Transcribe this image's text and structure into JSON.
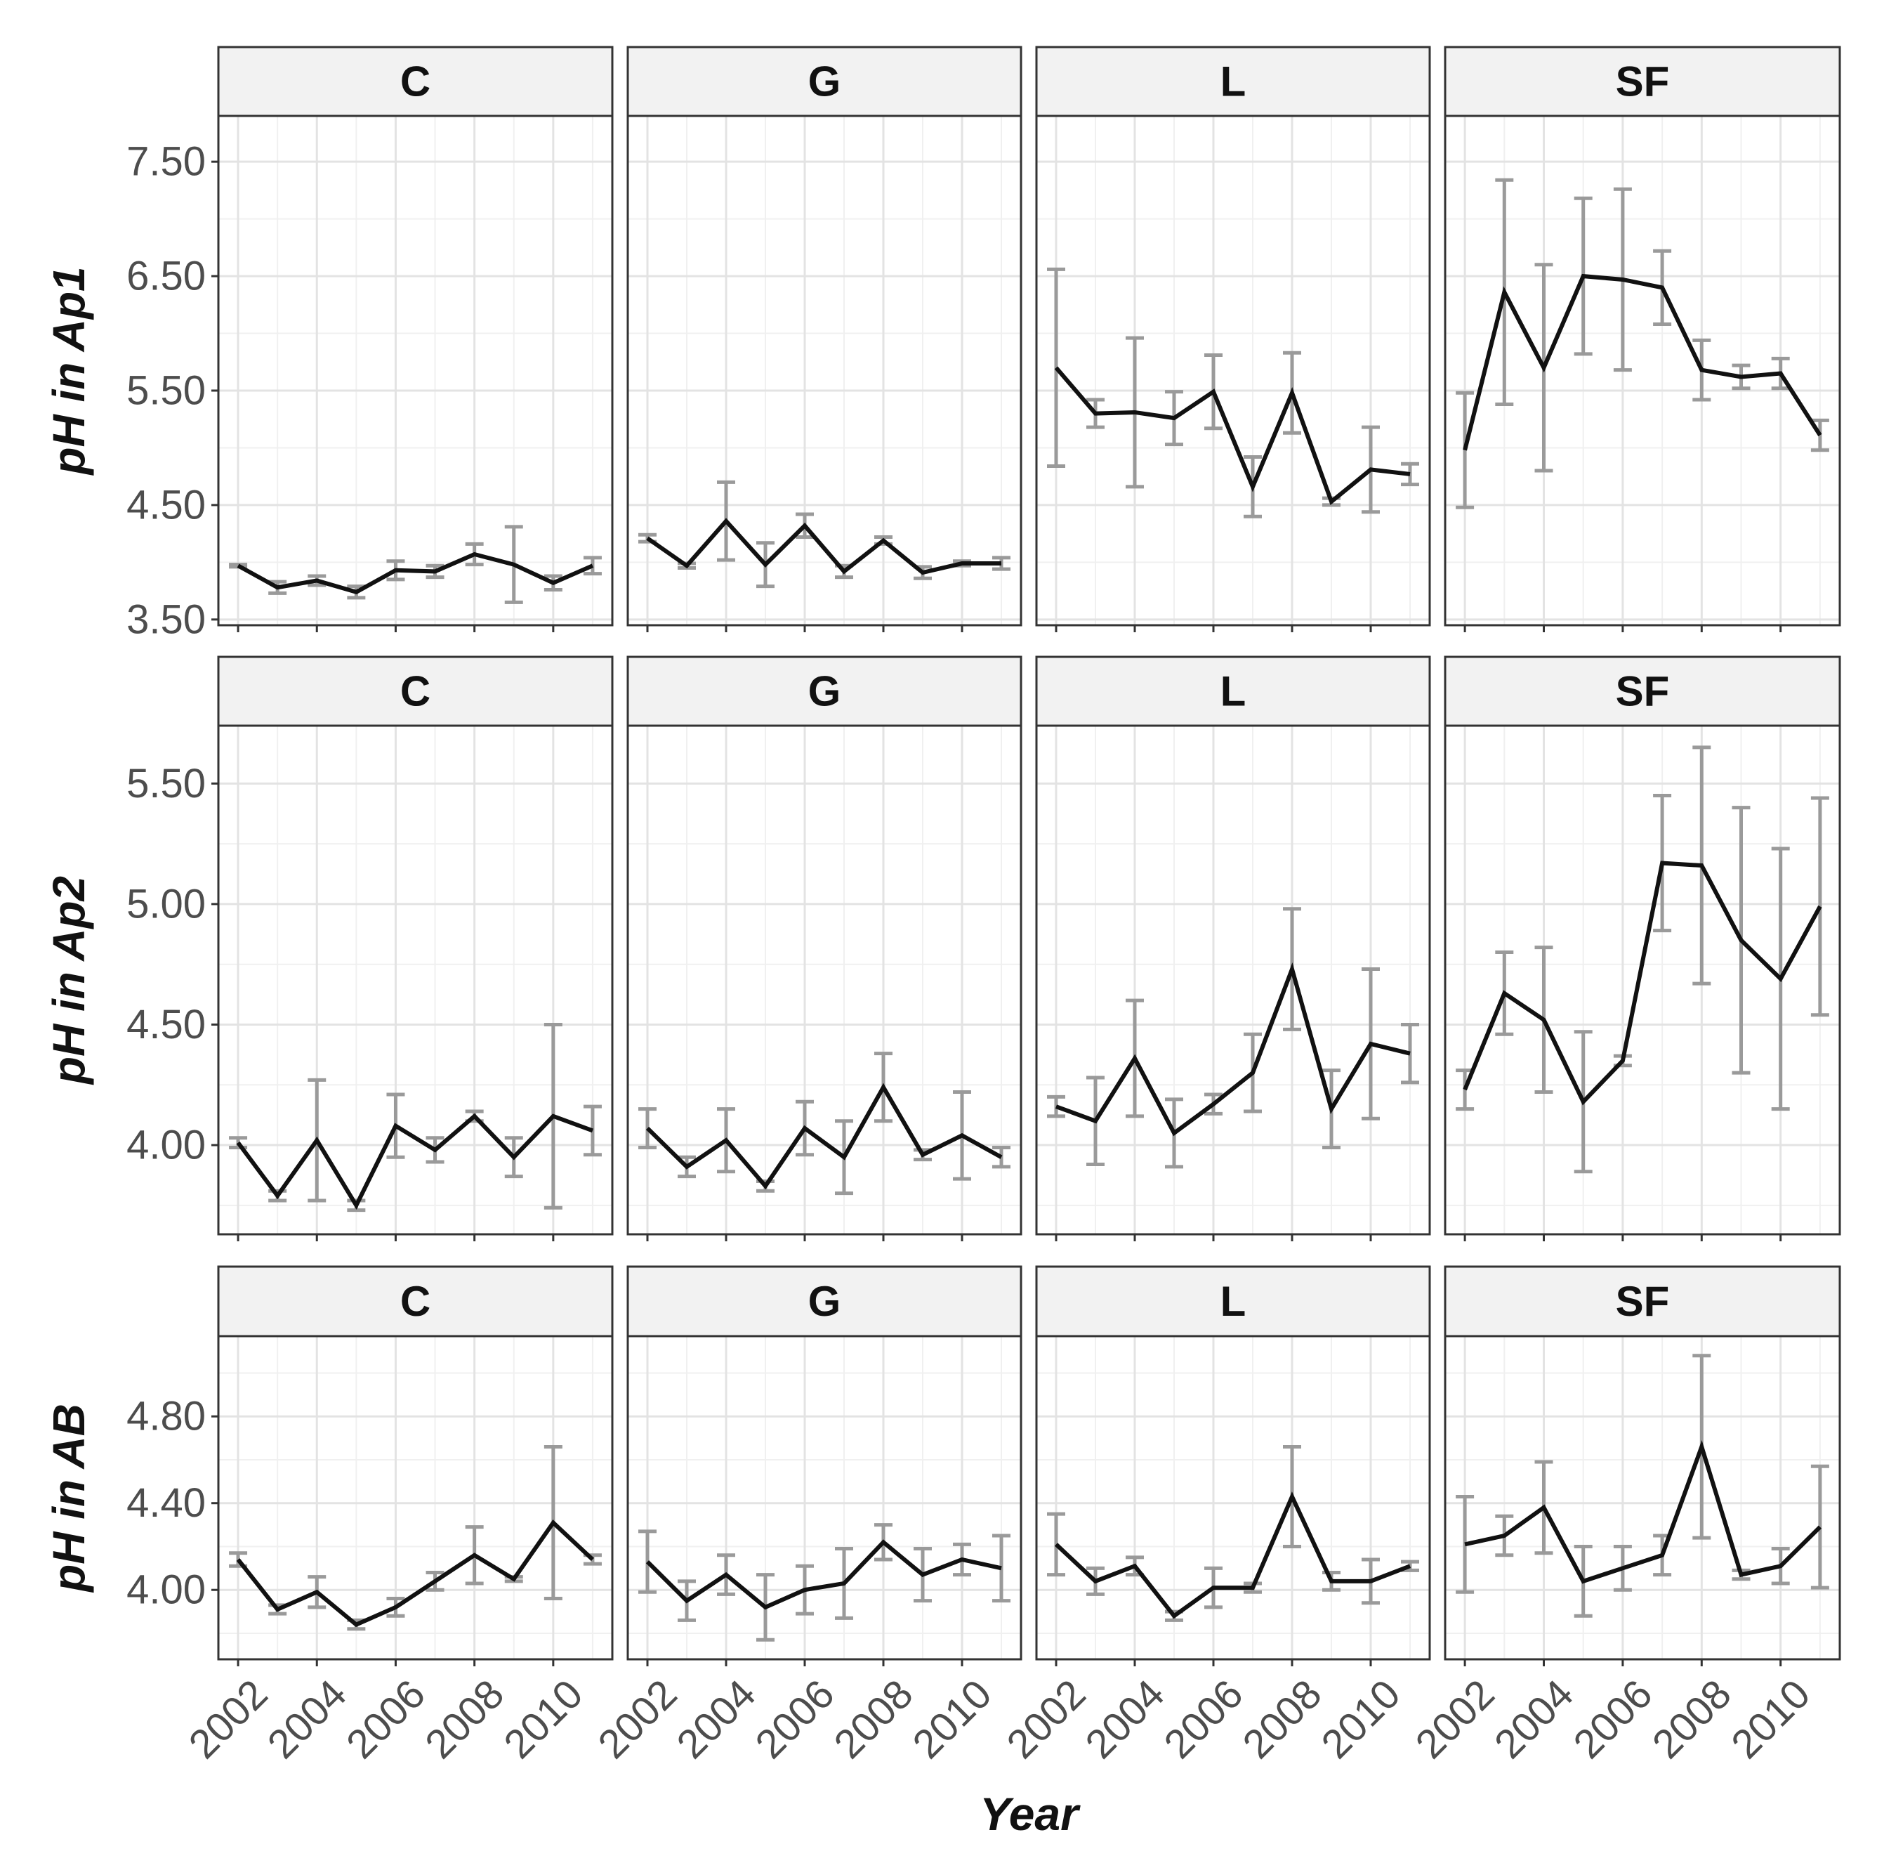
{
  "chart_data": {
    "type": "line",
    "xlabel": "Year",
    "panels": [
      "C",
      "G",
      "L",
      "SF"
    ],
    "x_ticks": [
      2002,
      2004,
      2006,
      2008,
      2010
    ],
    "x_range": [
      2001.5,
      2011.5
    ],
    "years": [
      2002,
      2003,
      2004,
      2005,
      2006,
      2007,
      2008,
      2009,
      2010,
      2011
    ],
    "grid": true,
    "rows": [
      {
        "ylabel": "pH in Ap1",
        "ylim": [
          3.45,
          7.9
        ],
        "y_ticks": [
          3.5,
          4.5,
          5.5,
          6.5,
          7.5
        ],
        "y_tick_labels": [
          "3.50",
          "4.50",
          "5.50",
          "6.50",
          "7.50"
        ],
        "panels": {
          "C": {
            "mean": [
              3.97,
              3.78,
              3.84,
              3.74,
              3.93,
              3.92,
              4.07,
              3.98,
              3.82,
              3.97
            ],
            "lower": [
              3.96,
              3.73,
              3.8,
              3.69,
              3.85,
              3.87,
              3.98,
              3.65,
              3.76,
              3.9
            ],
            "upper": [
              3.98,
              3.83,
              3.88,
              3.79,
              4.01,
              3.97,
              4.16,
              4.31,
              3.88,
              4.04
            ]
          },
          "G": {
            "mean": [
              4.21,
              3.97,
              4.36,
              3.98,
              4.32,
              3.92,
              4.19,
              3.91,
              3.99,
              3.99
            ],
            "lower": [
              4.18,
              3.95,
              4.02,
              3.79,
              4.22,
              3.87,
              4.16,
              3.86,
              3.97,
              3.94
            ],
            "upper": [
              4.24,
              3.99,
              4.7,
              4.17,
              4.42,
              3.97,
              4.22,
              3.96,
              4.01,
              4.04
            ]
          },
          "L": {
            "mean": [
              5.7,
              5.3,
              5.31,
              5.26,
              5.49,
              4.66,
              5.48,
              4.53,
              4.81,
              4.77
            ],
            "lower": [
              4.84,
              5.18,
              4.66,
              5.03,
              5.17,
              4.4,
              5.13,
              4.5,
              4.44,
              4.68
            ],
            "upper": [
              6.56,
              5.42,
              5.96,
              5.49,
              5.81,
              4.92,
              5.83,
              4.56,
              5.18,
              4.86
            ]
          },
          "SF": {
            "mean": [
              4.98,
              6.36,
              5.7,
              6.5,
              6.47,
              6.4,
              5.68,
              5.62,
              5.65,
              5.11
            ],
            "lower": [
              4.48,
              5.38,
              4.8,
              5.82,
              5.68,
              6.08,
              5.42,
              5.52,
              5.52,
              4.98
            ],
            "upper": [
              5.48,
              7.34,
              6.6,
              7.18,
              7.26,
              6.72,
              5.94,
              5.72,
              5.78,
              5.24
            ]
          }
        }
      },
      {
        "ylabel": "pH in Ap2",
        "ylim": [
          3.63,
          5.74
        ],
        "y_ticks": [
          4.0,
          4.5,
          5.0,
          5.5
        ],
        "y_tick_labels": [
          "4.00",
          "4.50",
          "5.00",
          "5.50"
        ],
        "panels": {
          "C": {
            "mean": [
              4.01,
              3.79,
              4.02,
              3.75,
              4.08,
              3.98,
              4.12,
              3.95,
              4.12,
              4.06
            ],
            "lower": [
              3.99,
              3.77,
              3.77,
              3.73,
              3.95,
              3.93,
              4.1,
              3.87,
              3.74,
              3.96
            ],
            "upper": [
              4.03,
              3.81,
              4.27,
              3.77,
              4.21,
              4.03,
              4.14,
              4.03,
              4.5,
              4.16
            ]
          },
          "G": {
            "mean": [
              4.07,
              3.91,
              4.02,
              3.83,
              4.07,
              3.95,
              4.24,
              3.96,
              4.04,
              3.95
            ],
            "lower": [
              3.99,
              3.87,
              3.89,
              3.81,
              3.96,
              3.8,
              4.1,
              3.94,
              3.86,
              3.91
            ],
            "upper": [
              4.15,
              3.95,
              4.15,
              3.85,
              4.18,
              4.1,
              4.38,
              3.98,
              4.22,
              3.99
            ]
          },
          "L": {
            "mean": [
              4.16,
              4.1,
              4.36,
              4.05,
              4.17,
              4.3,
              4.73,
              4.15,
              4.42,
              4.38
            ],
            "lower": [
              4.12,
              3.92,
              4.12,
              3.91,
              4.13,
              4.14,
              4.48,
              3.99,
              4.11,
              4.26
            ],
            "upper": [
              4.2,
              4.28,
              4.6,
              4.19,
              4.21,
              4.46,
              4.98,
              4.31,
              4.73,
              4.5
            ]
          },
          "SF": {
            "mean": [
              4.23,
              4.63,
              4.52,
              4.18,
              4.35,
              5.17,
              5.16,
              4.85,
              4.69,
              4.99
            ],
            "lower": [
              4.15,
              4.46,
              4.22,
              3.89,
              4.33,
              4.89,
              4.67,
              4.3,
              4.15,
              4.54
            ],
            "upper": [
              4.31,
              4.8,
              4.82,
              4.47,
              4.37,
              5.45,
              5.65,
              5.4,
              5.23,
              5.44
            ]
          }
        }
      },
      {
        "ylabel": "pH in AB",
        "ylim": [
          3.68,
          5.17
        ],
        "y_ticks": [
          4.0,
          4.4,
          4.8
        ],
        "y_tick_labels": [
          "4.00",
          "4.40",
          "4.80"
        ],
        "panels": {
          "C": {
            "mean": [
              4.14,
              3.91,
              3.99,
              3.84,
              3.92,
              4.04,
              4.16,
              4.05,
              4.31,
              4.14
            ],
            "lower": [
              4.11,
              3.89,
              3.92,
              3.82,
              3.88,
              4.0,
              4.03,
              4.04,
              3.96,
              4.12
            ],
            "upper": [
              4.17,
              3.93,
              4.06,
              3.86,
              3.96,
              4.08,
              4.29,
              4.06,
              4.66,
              4.16
            ]
          },
          "G": {
            "mean": [
              4.13,
              3.95,
              4.07,
              3.92,
              4.0,
              4.03,
              4.22,
              4.07,
              4.14,
              4.1
            ],
            "lower": [
              3.99,
              3.86,
              3.98,
              3.77,
              3.89,
              3.87,
              4.14,
              3.95,
              4.07,
              3.95
            ],
            "upper": [
              4.27,
              4.04,
              4.16,
              4.07,
              4.11,
              4.19,
              4.3,
              4.19,
              4.21,
              4.25
            ]
          },
          "L": {
            "mean": [
              4.21,
              4.04,
              4.11,
              3.88,
              4.01,
              4.01,
              4.43,
              4.04,
              4.04,
              4.11
            ],
            "lower": [
              4.07,
              3.98,
              4.07,
              3.86,
              3.92,
              3.99,
              4.2,
              4.0,
              3.94,
              4.09
            ],
            "upper": [
              4.35,
              4.1,
              4.15,
              3.9,
              4.1,
              4.03,
              4.66,
              4.08,
              4.14,
              4.13
            ]
          },
          "SF": {
            "mean": [
              4.21,
              4.25,
              4.38,
              4.04,
              4.1,
              4.16,
              4.66,
              4.07,
              4.11,
              4.29
            ],
            "lower": [
              3.99,
              4.16,
              4.17,
              3.88,
              4.0,
              4.07,
              4.24,
              4.05,
              4.03,
              4.01
            ],
            "upper": [
              4.43,
              4.34,
              4.59,
              4.2,
              4.2,
              4.25,
              5.08,
              4.09,
              4.19,
              4.57
            ]
          }
        }
      }
    ]
  }
}
